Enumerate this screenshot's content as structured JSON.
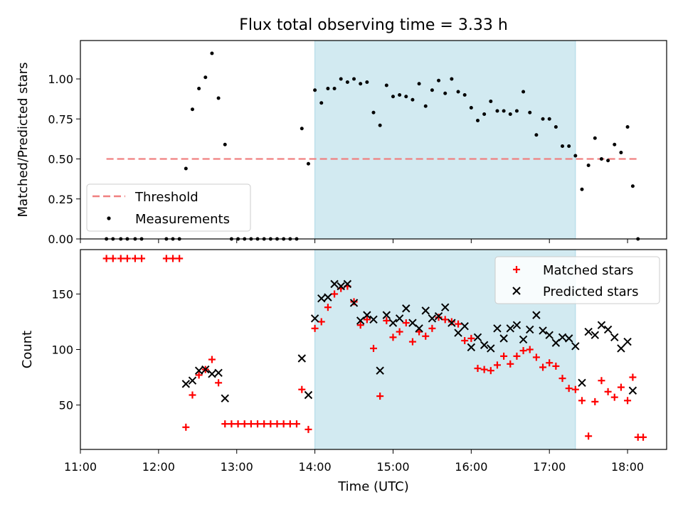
{
  "chart_data": [
    {
      "type": "scatter",
      "title": "Flux total observing time = 3.33 h",
      "xlabel": "",
      "ylabel": "Matched/Predicted stars",
      "xlim": [
        "11:00",
        "18:30"
      ],
      "ylim": [
        0,
        1.24
      ],
      "yticks": [
        "0.00",
        "0.25",
        "0.50",
        "0.75",
        "1.00"
      ],
      "shaded_span": {
        "x": [
          "14:00",
          "17:20"
        ],
        "color": "#add8e6"
      },
      "threshold": {
        "name": "Threshold",
        "value": 0.5,
        "x": [
          "11:20",
          "18:08"
        ],
        "color": "#f08080"
      },
      "legend": "lower-left",
      "series": [
        {
          "name": "Measurements",
          "color": "#000000",
          "marker": "dot",
          "points": [
            [
              "11:20",
              0
            ],
            [
              "11:25",
              0
            ],
            [
              "11:31",
              0
            ],
            [
              "11:36",
              0
            ],
            [
              "11:42",
              0
            ],
            [
              "11:47",
              0
            ],
            [
              "12:06",
              0
            ],
            [
              "12:11",
              0
            ],
            [
              "12:16",
              0
            ],
            [
              "12:21",
              0.44
            ],
            [
              "12:26",
              0.81
            ],
            [
              "12:31",
              0.94
            ],
            [
              "12:36",
              1.01
            ],
            [
              "12:41",
              1.16
            ],
            [
              "12:46",
              0.88
            ],
            [
              "12:51",
              0.59
            ],
            [
              "12:56",
              0
            ],
            [
              "13:01",
              0
            ],
            [
              "13:06",
              0
            ],
            [
              "13:11",
              0
            ],
            [
              "13:16",
              0
            ],
            [
              "13:21",
              0
            ],
            [
              "13:26",
              0
            ],
            [
              "13:31",
              0
            ],
            [
              "13:36",
              0
            ],
            [
              "13:41",
              0
            ],
            [
              "13:46",
              0
            ],
            [
              "13:50",
              0.69
            ],
            [
              "13:55",
              0.47
            ],
            [
              "14:00",
              0.93
            ],
            [
              "14:05",
              0.85
            ],
            [
              "14:10",
              0.94
            ],
            [
              "14:15",
              0.94
            ],
            [
              "14:20",
              1.0
            ],
            [
              "14:25",
              0.98
            ],
            [
              "14:30",
              1.0
            ],
            [
              "14:35",
              0.97
            ],
            [
              "14:40",
              0.98
            ],
            [
              "14:45",
              0.79
            ],
            [
              "14:50",
              0.71
            ],
            [
              "14:55",
              0.96
            ],
            [
              "15:00",
              0.89
            ],
            [
              "15:05",
              0.9
            ],
            [
              "15:10",
              0.89
            ],
            [
              "15:15",
              0.87
            ],
            [
              "15:20",
              0.97
            ],
            [
              "15:25",
              0.83
            ],
            [
              "15:30",
              0.93
            ],
            [
              "15:35",
              0.99
            ],
            [
              "15:40",
              0.91
            ],
            [
              "15:45",
              1.0
            ],
            [
              "15:50",
              0.92
            ],
            [
              "15:55",
              0.9
            ],
            [
              "16:00",
              0.82
            ],
            [
              "16:05",
              0.74
            ],
            [
              "16:10",
              0.78
            ],
            [
              "16:15",
              0.86
            ],
            [
              "16:20",
              0.8
            ],
            [
              "16:25",
              0.8
            ],
            [
              "16:30",
              0.78
            ],
            [
              "16:35",
              0.8
            ],
            [
              "16:40",
              0.92
            ],
            [
              "16:45",
              0.79
            ],
            [
              "16:50",
              0.65
            ],
            [
              "16:55",
              0.75
            ],
            [
              "17:00",
              0.75
            ],
            [
              "17:05",
              0.7
            ],
            [
              "17:10",
              0.58
            ],
            [
              "17:15",
              0.58
            ],
            [
              "17:20",
              0.52
            ],
            [
              "17:25",
              0.31
            ],
            [
              "17:30",
              0.46
            ],
            [
              "17:35",
              0.63
            ],
            [
              "17:40",
              0.5
            ],
            [
              "17:45",
              0.49
            ],
            [
              "17:50",
              0.59
            ],
            [
              "17:55",
              0.54
            ],
            [
              "18:00",
              0.7
            ],
            [
              "18:04",
              0.33
            ],
            [
              "18:08",
              0
            ]
          ]
        }
      ]
    },
    {
      "type": "scatter",
      "title": "",
      "xlabel": "Time (UTC)",
      "ylabel": "Count",
      "xlim": [
        "11:00",
        "18:30"
      ],
      "ylim": [
        10,
        190
      ],
      "xticks": [
        "11:00",
        "12:00",
        "13:00",
        "14:00",
        "15:00",
        "16:00",
        "17:00",
        "18:00"
      ],
      "yticks": [
        "50",
        "100",
        "150"
      ],
      "shaded_span": {
        "x": [
          "14:00",
          "17:20"
        ],
        "color": "#add8e6"
      },
      "legend": "upper-right",
      "series": [
        {
          "name": "Matched stars",
          "color": "#ff0000",
          "marker": "plus",
          "points": [
            [
              "11:20",
              182
            ],
            [
              "11:25",
              182
            ],
            [
              "11:31",
              182
            ],
            [
              "11:36",
              182
            ],
            [
              "11:42",
              182
            ],
            [
              "11:47",
              182
            ],
            [
              "12:06",
              182
            ],
            [
              "12:11",
              182
            ],
            [
              "12:16",
              182
            ],
            [
              "12:21",
              30
            ],
            [
              "12:26",
              59
            ],
            [
              "12:31",
              77
            ],
            [
              "12:36",
              82
            ],
            [
              "12:41",
              91
            ],
            [
              "12:46",
              70
            ],
            [
              "12:51",
              33
            ],
            [
              "12:56",
              33
            ],
            [
              "13:01",
              33
            ],
            [
              "13:06",
              33
            ],
            [
              "13:11",
              33
            ],
            [
              "13:16",
              33
            ],
            [
              "13:21",
              33
            ],
            [
              "13:26",
              33
            ],
            [
              "13:31",
              33
            ],
            [
              "13:36",
              33
            ],
            [
              "13:41",
              33
            ],
            [
              "13:46",
              33
            ],
            [
              "13:50",
              64
            ],
            [
              "13:55",
              28
            ],
            [
              "14:00",
              119
            ],
            [
              "14:05",
              125
            ],
            [
              "14:10",
              138
            ],
            [
              "14:15",
              150
            ],
            [
              "14:20",
              155
            ],
            [
              "14:25",
              157
            ],
            [
              "14:30",
              143
            ],
            [
              "14:35",
              122
            ],
            [
              "14:40",
              127
            ],
            [
              "14:45",
              101
            ],
            [
              "14:50",
              58
            ],
            [
              "14:55",
              126
            ],
            [
              "15:00",
              111
            ],
            [
              "15:05",
              116
            ],
            [
              "15:10",
              124
            ],
            [
              "15:15",
              107
            ],
            [
              "15:20",
              116
            ],
            [
              "15:25",
              112
            ],
            [
              "15:30",
              119
            ],
            [
              "15:35",
              129
            ],
            [
              "15:40",
              127
            ],
            [
              "15:45",
              125
            ],
            [
              "15:50",
              123
            ],
            [
              "15:55",
              108
            ],
            [
              "16:00",
              110
            ],
            [
              "16:05",
              83
            ],
            [
              "16:10",
              82
            ],
            [
              "16:15",
              81
            ],
            [
              "16:20",
              86
            ],
            [
              "16:25",
              94
            ],
            [
              "16:30",
              87
            ],
            [
              "16:35",
              94
            ],
            [
              "16:40",
              99
            ],
            [
              "16:45",
              100
            ],
            [
              "16:50",
              93
            ],
            [
              "16:55",
              84
            ],
            [
              "17:00",
              88
            ],
            [
              "17:05",
              85
            ],
            [
              "17:10",
              74
            ],
            [
              "17:15",
              65
            ],
            [
              "17:20",
              64
            ],
            [
              "17:25",
              54
            ],
            [
              "17:30",
              22
            ],
            [
              "17:35",
              53
            ],
            [
              "17:40",
              72
            ],
            [
              "17:45",
              62
            ],
            [
              "17:50",
              57
            ],
            [
              "17:55",
              66
            ],
            [
              "18:00",
              54
            ],
            [
              "18:04",
              75
            ],
            [
              "18:08",
              21
            ],
            [
              "18:12",
              21
            ]
          ]
        },
        {
          "name": "Predicted stars",
          "color": "#000000",
          "marker": "x",
          "points": [
            [
              "12:21",
              69
            ],
            [
              "12:26",
              72
            ],
            [
              "12:31",
              81
            ],
            [
              "12:36",
              82
            ],
            [
              "12:41",
              78
            ],
            [
              "12:46",
              79
            ],
            [
              "12:51",
              56
            ],
            [
              "13:50",
              92
            ],
            [
              "13:55",
              59
            ],
            [
              "14:00",
              128
            ],
            [
              "14:05",
              146
            ],
            [
              "14:10",
              147
            ],
            [
              "14:15",
              159
            ],
            [
              "14:20",
              157
            ],
            [
              "14:25",
              159
            ],
            [
              "14:30",
              142
            ],
            [
              "14:35",
              126
            ],
            [
              "14:40",
              131
            ],
            [
              "14:45",
              127
            ],
            [
              "14:50",
              81
            ],
            [
              "14:55",
              131
            ],
            [
              "15:00",
              124
            ],
            [
              "15:05",
              128
            ],
            [
              "15:10",
              137
            ],
            [
              "15:15",
              124
            ],
            [
              "15:20",
              119
            ],
            [
              "15:25",
              135
            ],
            [
              "15:30",
              128
            ],
            [
              "15:35",
              130
            ],
            [
              "15:40",
              138
            ],
            [
              "15:45",
              124
            ],
            [
              "15:50",
              115
            ],
            [
              "15:55",
              121
            ],
            [
              "16:00",
              102
            ],
            [
              "16:05",
              111
            ],
            [
              "16:10",
              104
            ],
            [
              "16:15",
              101
            ],
            [
              "16:20",
              119
            ],
            [
              "16:25",
              110
            ],
            [
              "16:30",
              119
            ],
            [
              "16:35",
              122
            ],
            [
              "16:40",
              109
            ],
            [
              "16:45",
              118
            ],
            [
              "16:50",
              131
            ],
            [
              "16:55",
              117
            ],
            [
              "17:00",
              113
            ],
            [
              "17:05",
              106
            ],
            [
              "17:10",
              111
            ],
            [
              "17:15",
              110
            ],
            [
              "17:20",
              103
            ],
            [
              "17:25",
              70
            ],
            [
              "17:30",
              116
            ],
            [
              "17:35",
              113
            ],
            [
              "17:40",
              122
            ],
            [
              "17:45",
              118
            ],
            [
              "17:50",
              111
            ],
            [
              "17:55",
              101
            ],
            [
              "18:00",
              107
            ],
            [
              "18:04",
              63
            ]
          ]
        }
      ]
    }
  ]
}
